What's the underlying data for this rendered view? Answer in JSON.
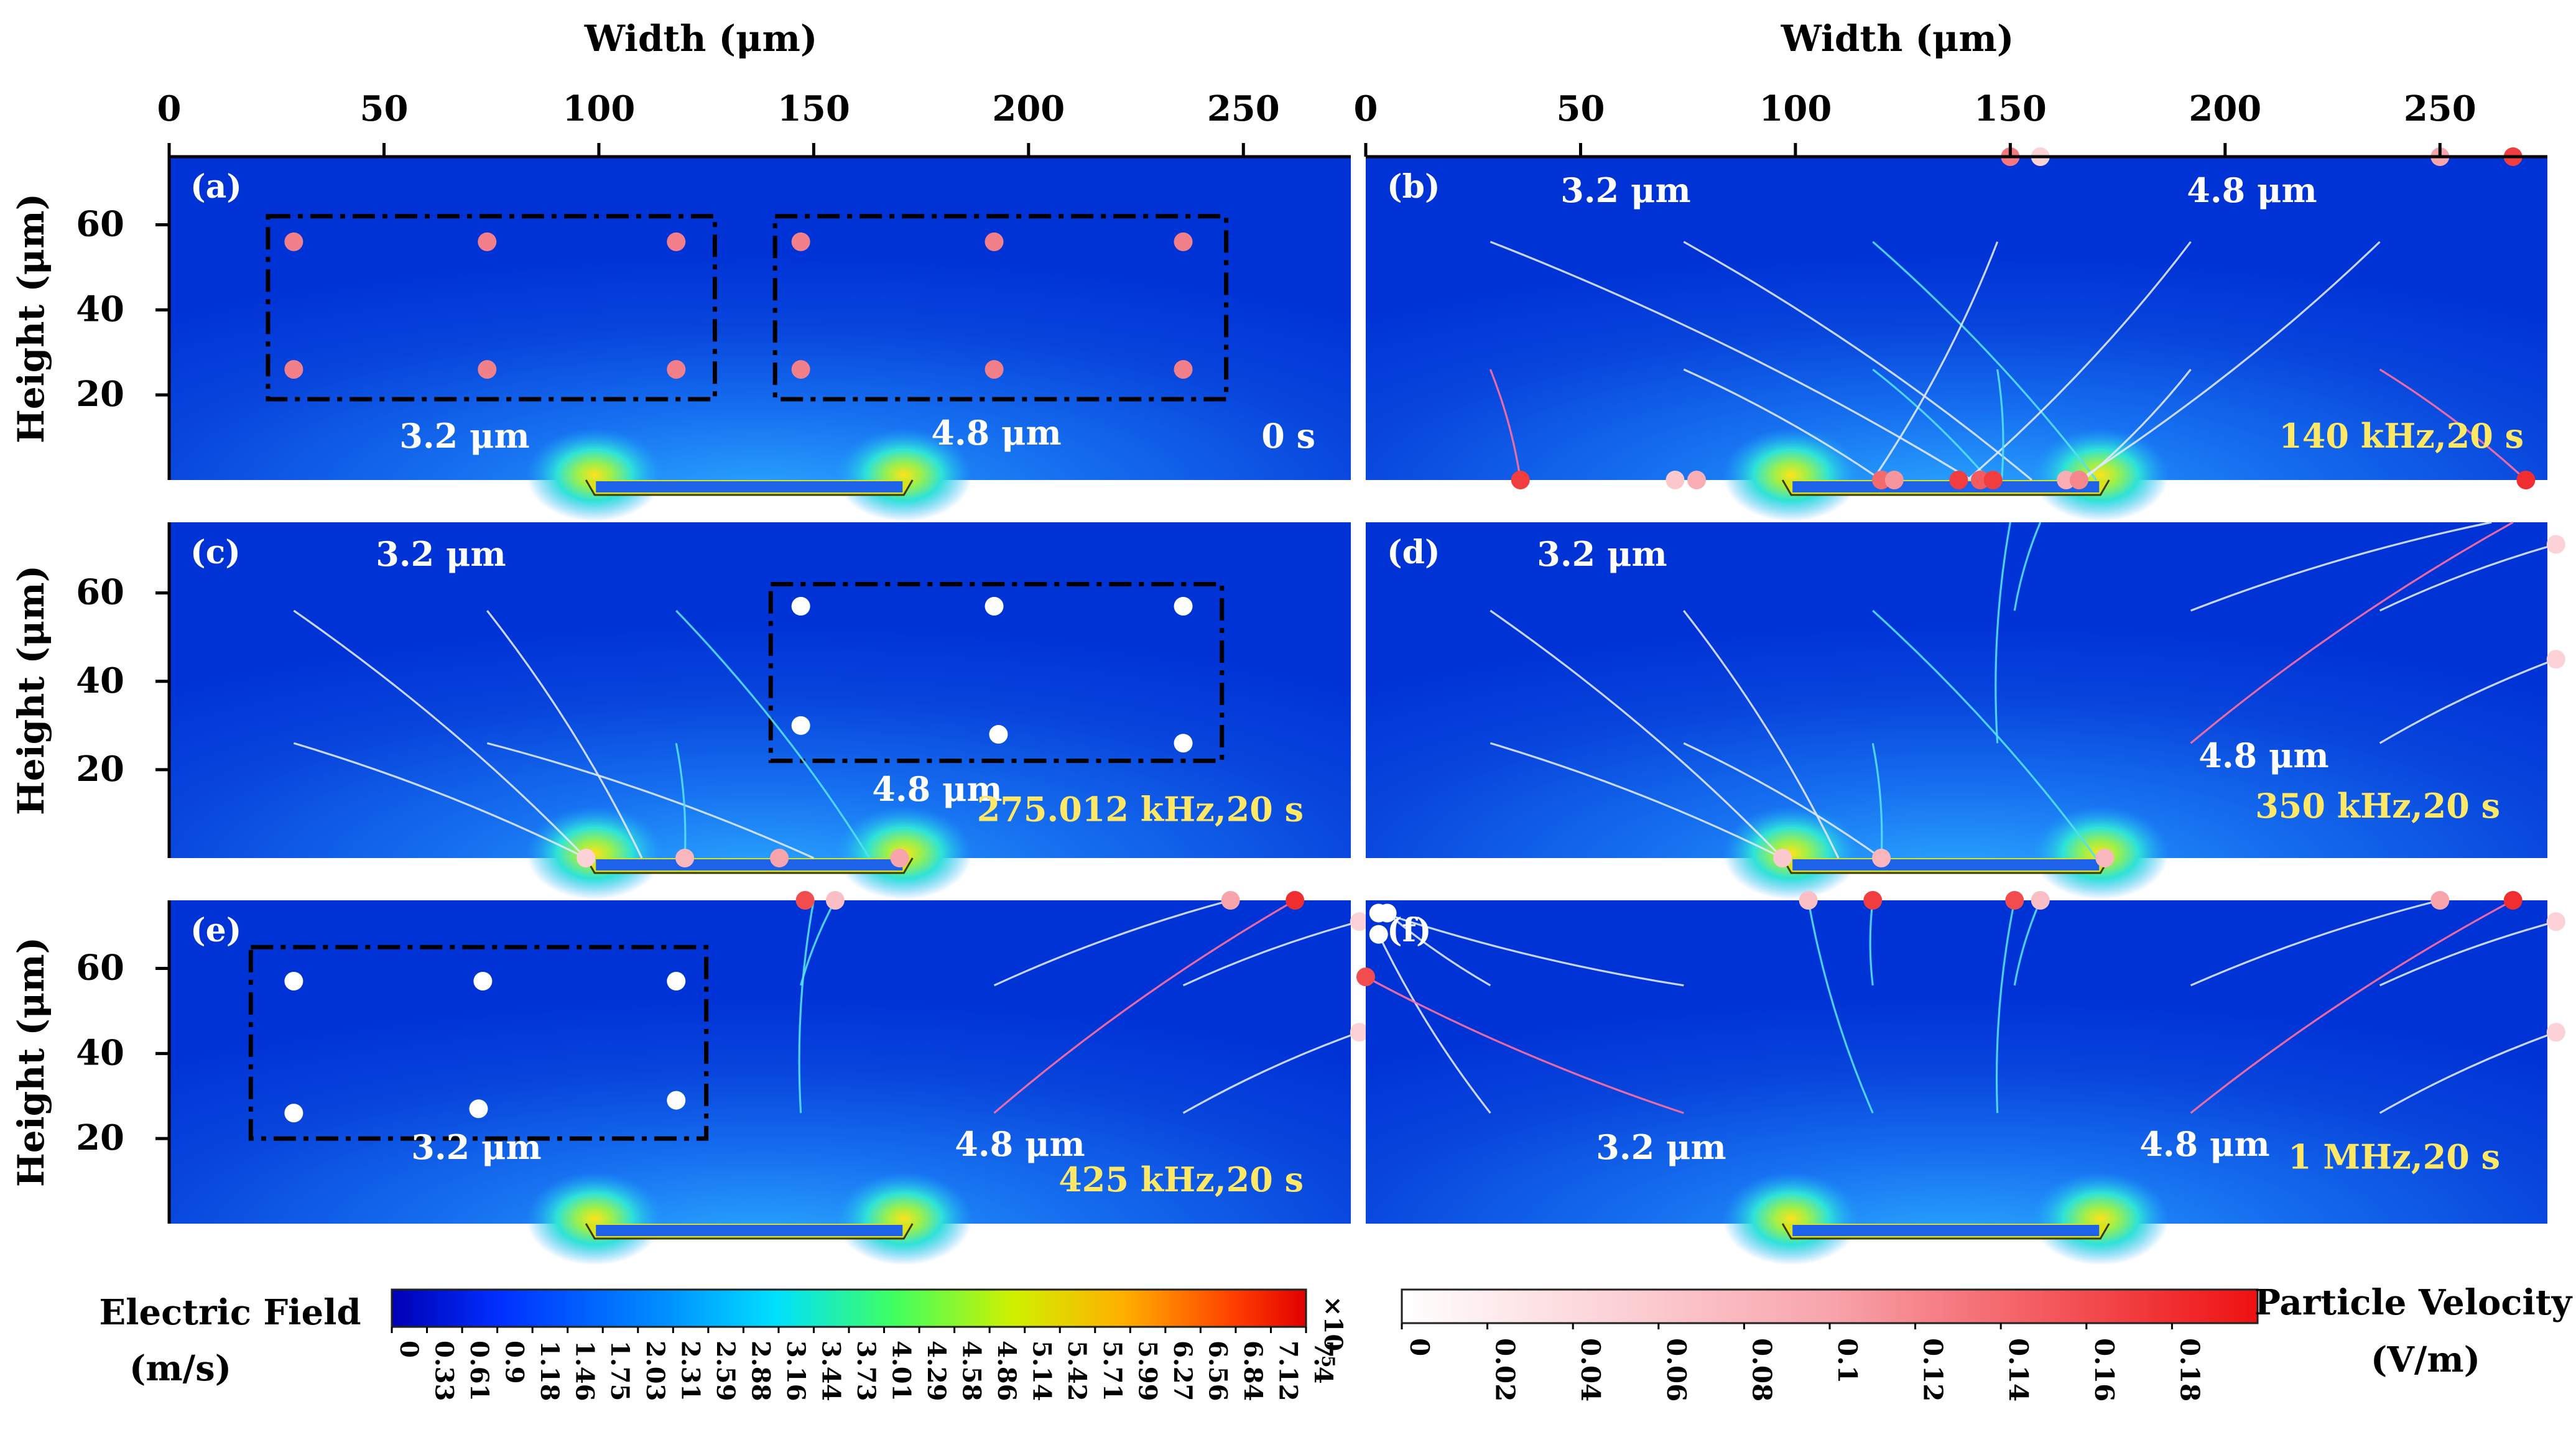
{
  "colors": {
    "field_low": "#0033d6",
    "field_mid": "#1c8dff",
    "electrode_glow": "#ffd21a",
    "box_line": "#000000",
    "label_white": "#ffffff",
    "label_yellow": "#ffe866",
    "particle_pink": "#f2808a",
    "particle_red": "#ee1111",
    "particle_white": "#ffffff",
    "traj_white": "#dfe8ff",
    "traj_cyan": "#54e0f0",
    "traj_pink": "#ff6fa0"
  },
  "chart_data": [
    {
      "type": "scatter",
      "panel": "(a)",
      "title": "Width (μm)",
      "xlabel": "Width (μm)",
      "ylabel": "Height (μm)",
      "xlim": [
        0,
        275
      ],
      "ylim": [
        0,
        76
      ],
      "xticks": [
        "0",
        "50",
        "100",
        "150",
        "200",
        "250"
      ],
      "yticks": [
        "60",
        "40",
        "20"
      ],
      "condition": "0 s",
      "size_labels": [
        "3.2 μm",
        "4.8 μm"
      ],
      "boxes": [
        [
          23,
          127,
          19,
          62
        ],
        [
          141,
          246,
          19,
          62
        ]
      ],
      "series": [
        {
          "name": "3.2 μm",
          "color": "pink",
          "points": [
            [
              29,
              56
            ],
            [
              74,
              56
            ],
            [
              118,
              56
            ],
            [
              29,
              26
            ],
            [
              74,
              26
            ],
            [
              118,
              26
            ]
          ]
        },
        {
          "name": "4.8 μm",
          "color": "pink",
          "points": [
            [
              147,
              56
            ],
            [
              192,
              56
            ],
            [
              236,
              56
            ],
            [
              147,
              26
            ],
            [
              192,
              26
            ],
            [
              236,
              26
            ]
          ]
        }
      ]
    },
    {
      "type": "scatter",
      "panel": "(b)",
      "xlabel": "Width (μm)",
      "xlim": [
        0,
        275
      ],
      "ylim": [
        0,
        76
      ],
      "xticks": [
        "0",
        "50",
        "100",
        "150",
        "200",
        "250"
      ],
      "condition": "140 kHz,20 s",
      "size_labels": [
        "3.2 μm",
        "4.8 μm"
      ],
      "trajectories": [
        {
          "from": [
            29,
            56
          ],
          "to": [
            141,
            0
          ],
          "color": "white"
        },
        {
          "from": [
            74,
            56
          ],
          "to": [
            155,
            0
          ],
          "color": "white"
        },
        {
          "from": [
            118,
            56
          ],
          "to": [
            170,
            0
          ],
          "color": "cyan"
        },
        {
          "from": [
            29,
            26
          ],
          "to": [
            36,
            0
          ],
          "color": "pink"
        },
        {
          "from": [
            74,
            26
          ],
          "to": [
            120,
            0
          ],
          "color": "white"
        },
        {
          "from": [
            118,
            26
          ],
          "to": [
            145,
            0
          ],
          "color": "cyan"
        },
        {
          "from": [
            147,
            56
          ],
          "to": [
            118,
            0
          ],
          "color": "white"
        },
        {
          "from": [
            192,
            56
          ],
          "to": [
            140,
            0
          ],
          "color": "white"
        },
        {
          "from": [
            236,
            56
          ],
          "to": [
            166,
            0
          ],
          "color": "white"
        },
        {
          "from": [
            147,
            26
          ],
          "to": [
            148,
            0
          ],
          "color": "cyan"
        },
        {
          "from": [
            192,
            26
          ],
          "to": [
            167,
            0
          ],
          "color": "white"
        },
        {
          "from": [
            236,
            26
          ],
          "to": [
            270,
            0
          ],
          "color": "pink"
        }
      ],
      "series": [
        {
          "name": "deposited particles",
          "points": [
            [
              36,
              0,
              0.17
            ],
            [
              72,
              0,
              0.06
            ],
            [
              77,
              0,
              0.09
            ],
            [
              120,
              0,
              0.14
            ],
            [
              123,
              0,
              0.11
            ],
            [
              138,
              0,
              0.17
            ],
            [
              143,
              0,
              0.15
            ],
            [
              146,
              0,
              0.17
            ],
            [
              163,
              0,
              0.09
            ],
            [
              166,
              0,
              0.12
            ],
            [
              270,
              0,
              0.18
            ]
          ]
        },
        {
          "name": "particles at top",
          "points": [
            [
              150,
              76,
              0.13
            ],
            [
              157,
              76,
              0.05
            ],
            [
              250,
              76,
              0.1
            ],
            [
              267,
              76,
              0.17
            ]
          ]
        }
      ]
    },
    {
      "type": "scatter",
      "panel": "(c)",
      "ylabel": "Height (μm)",
      "xlim": [
        0,
        275
      ],
      "ylim": [
        0,
        76
      ],
      "yticks": [
        "60",
        "40",
        "20"
      ],
      "condition": "275.012 kHz,20 s",
      "size_labels": [
        "3.2 μm",
        "4.8 μm"
      ],
      "boxes": [
        [
          140,
          245,
          22,
          62
        ]
      ],
      "trajectories": [
        {
          "from": [
            29,
            56
          ],
          "to": [
            97,
            0
          ],
          "color": "white"
        },
        {
          "from": [
            74,
            56
          ],
          "to": [
            110,
            0
          ],
          "color": "white"
        },
        {
          "from": [
            118,
            56
          ],
          "to": [
            163,
            0
          ],
          "color": "cyan"
        },
        {
          "from": [
            29,
            26
          ],
          "to": [
            97,
            0
          ],
          "color": "white"
        },
        {
          "from": [
            74,
            26
          ],
          "to": [
            150,
            0
          ],
          "color": "white"
        },
        {
          "from": [
            118,
            26
          ],
          "to": [
            120,
            0
          ],
          "color": "cyan"
        }
      ],
      "series": [
        {
          "name": "4.8 μm",
          "color": "white",
          "points": [
            [
              147,
              57
            ],
            [
              192,
              57
            ],
            [
              236,
              57
            ],
            [
              147,
              30
            ],
            [
              193,
              28
            ],
            [
              236,
              26
            ]
          ]
        },
        {
          "name": "deposited",
          "points": [
            [
              97,
              0,
              0.05
            ],
            [
              120,
              0,
              0.08
            ],
            [
              142,
              0,
              0.1
            ],
            [
              170,
              0,
              0.1
            ]
          ]
        }
      ]
    },
    {
      "type": "scatter",
      "panel": "(d)",
      "xlim": [
        0,
        275
      ],
      "ylim": [
        0,
        76
      ],
      "condition": "350 kHz,20 s",
      "size_labels": [
        "3.2 μm",
        "4.8 μm"
      ],
      "trajectories": [
        {
          "from": [
            29,
            56
          ],
          "to": [
            97,
            0
          ],
          "color": "white"
        },
        {
          "from": [
            74,
            56
          ],
          "to": [
            110,
            0
          ],
          "color": "white"
        },
        {
          "from": [
            118,
            56
          ],
          "to": [
            170,
            0
          ],
          "color": "cyan"
        },
        {
          "from": [
            29,
            26
          ],
          "to": [
            97,
            0
          ],
          "color": "white"
        },
        {
          "from": [
            74,
            26
          ],
          "to": [
            120,
            0
          ],
          "color": "white"
        },
        {
          "from": [
            118,
            26
          ],
          "to": [
            120,
            0
          ],
          "color": "cyan"
        },
        {
          "from": [
            151,
            56
          ],
          "to": [
            157,
            76
          ],
          "color": "cyan"
        },
        {
          "from": [
            192,
            56
          ],
          "to": [
            262,
            76
          ],
          "color": "white"
        },
        {
          "from": [
            236,
            56
          ],
          "to": [
            277,
            71
          ],
          "color": "white"
        },
        {
          "from": [
            147,
            26
          ],
          "to": [
            150,
            76
          ],
          "color": "cyan"
        },
        {
          "from": [
            192,
            26
          ],
          "to": [
            267,
            76
          ],
          "color": "pink"
        },
        {
          "from": [
            236,
            26
          ],
          "to": [
            277,
            45
          ],
          "color": "white"
        }
      ],
      "series": [
        {
          "name": "deposited",
          "points": [
            [
              97,
              0,
              0.06
            ],
            [
              120,
              0,
              0.08
            ],
            [
              172,
              0,
              0.08
            ]
          ]
        },
        {
          "name": "escaped",
          "points": [
            [
              277,
              71,
              0.05
            ],
            [
              277,
              45,
              0.05
            ]
          ]
        }
      ]
    },
    {
      "type": "scatter",
      "panel": "(e)",
      "ylabel": "Height (μm)",
      "xlim": [
        0,
        275
      ],
      "ylim": [
        0,
        76
      ],
      "yticks": [
        "60",
        "40",
        "20"
      ],
      "condition": "425 kHz,20 s",
      "size_labels": [
        "3.2 μm",
        "4.8 μm"
      ],
      "boxes": [
        [
          19,
          125,
          20,
          65
        ]
      ],
      "trajectories": [
        {
          "from": [
            147,
            56
          ],
          "to": [
            155,
            76
          ],
          "color": "cyan"
        },
        {
          "from": [
            147,
            26
          ],
          "to": [
            150,
            76
          ],
          "color": "cyan"
        },
        {
          "from": [
            192,
            56
          ],
          "to": [
            247,
            76
          ],
          "color": "white"
        },
        {
          "from": [
            192,
            26
          ],
          "to": [
            262,
            76
          ],
          "color": "pink"
        },
        {
          "from": [
            236,
            56
          ],
          "to": [
            277,
            71
          ],
          "color": "white"
        },
        {
          "from": [
            236,
            26
          ],
          "to": [
            277,
            45
          ],
          "color": "white"
        }
      ],
      "series": [
        {
          "name": "3.2 μm",
          "color": "white",
          "points": [
            [
              29,
              57
            ],
            [
              73,
              57
            ],
            [
              118,
              57
            ],
            [
              29,
              26
            ],
            [
              72,
              27
            ],
            [
              118,
              29
            ]
          ]
        },
        {
          "name": "escaped",
          "points": [
            [
              148,
              76,
              0.16
            ],
            [
              155,
              76,
              0.07
            ],
            [
              247,
              76,
              0.1
            ],
            [
              262,
              76,
              0.18
            ],
            [
              277,
              71,
              0.05
            ],
            [
              277,
              45,
              0.05
            ]
          ]
        }
      ]
    },
    {
      "type": "scatter",
      "panel": "(f)",
      "xlim": [
        0,
        275
      ],
      "ylim": [
        0,
        76
      ],
      "condition": "1 MHz,20 s",
      "size_labels": [
        "3.2 μm",
        "4.8 μm"
      ],
      "trajectories": [
        {
          "from": [
            29,
            56
          ],
          "to": [
            5,
            73
          ],
          "color": "white"
        },
        {
          "from": [
            74,
            56
          ],
          "to": [
            4,
            73
          ],
          "color": "white"
        },
        {
          "from": [
            118,
            56
          ],
          "to": [
            118,
            76
          ],
          "color": "cyan"
        },
        {
          "from": [
            29,
            26
          ],
          "to": [
            3,
            68
          ],
          "color": "white"
        },
        {
          "from": [
            74,
            26
          ],
          "to": [
            0,
            58
          ],
          "color": "pink"
        },
        {
          "from": [
            118,
            26
          ],
          "to": [
            103,
            76
          ],
          "color": "cyan"
        },
        {
          "from": [
            151,
            56
          ],
          "to": [
            157,
            76
          ],
          "color": "cyan"
        },
        {
          "from": [
            192,
            56
          ],
          "to": [
            250,
            76
          ],
          "color": "white"
        },
        {
          "from": [
            236,
            56
          ],
          "to": [
            277,
            71
          ],
          "color": "white"
        },
        {
          "from": [
            147,
            26
          ],
          "to": [
            151,
            76
          ],
          "color": "cyan"
        },
        {
          "from": [
            192,
            26
          ],
          "to": [
            267,
            76
          ],
          "color": "pink"
        },
        {
          "from": [
            236,
            26
          ],
          "to": [
            277,
            45
          ],
          "color": "white"
        }
      ],
      "series": [
        {
          "name": "escaped",
          "points": [
            [
              103,
              76,
              0.07
            ],
            [
              118,
              76,
              0.17
            ],
            [
              151,
              76,
              0.16
            ],
            [
              157,
              76,
              0.07
            ],
            [
              250,
              76,
              0.1
            ],
            [
              267,
              76,
              0.18
            ],
            [
              5,
              73,
              0.0
            ],
            [
              3,
              73,
              0.0
            ],
            [
              3,
              68,
              0.0
            ],
            [
              0,
              58,
              0.16
            ],
            [
              277,
              71,
              0.05
            ],
            [
              277,
              45,
              0.05
            ]
          ]
        }
      ]
    }
  ],
  "colorbars": {
    "field": {
      "title_line1": "Electric Field",
      "title_line2": "(m/s)",
      "ticks": [
        "0",
        "0.33",
        "0.61",
        "0.9",
        "1.18",
        "1.46",
        "1.75",
        "2.03",
        "2.31",
        "2.59",
        "2.88",
        "3.16",
        "3.44",
        "3.73",
        "4.01",
        "4.29",
        "4.58",
        "4.86",
        "5.14",
        "5.42",
        "5.71",
        "5.99",
        "6.27",
        "6.56",
        "6.84",
        "7.12",
        "7.4"
      ],
      "multiplier_base": "×10",
      "multiplier_exp": "5"
    },
    "velocity": {
      "title_line1": "Particle Velocity",
      "title_line2": "(V/m)",
      "ticks": [
        "0",
        "0.02",
        "0.04",
        "0.06",
        "0.08",
        "0.1",
        "0.12",
        "0.14",
        "0.16",
        "0.18"
      ],
      "max": 0.2
    }
  }
}
